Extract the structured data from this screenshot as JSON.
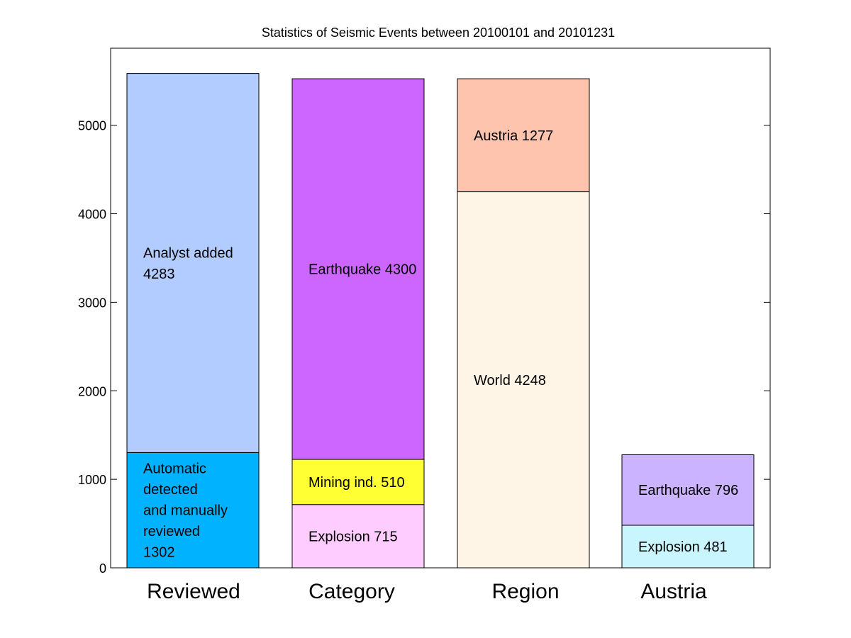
{
  "chart_data": {
    "type": "bar",
    "stacked": true,
    "title": "Statistics of Seismic Events between 20100101 and 20101231",
    "xlabel": "",
    "ylabel": "",
    "ylim": [
      0,
      5870
    ],
    "yticks": [
      0,
      1000,
      2000,
      3000,
      4000,
      5000
    ],
    "grid": false,
    "legend": "none",
    "categories": [
      "Reviewed",
      "Category",
      "Region",
      "Austria"
    ],
    "bars": [
      {
        "category": "Reviewed",
        "segments": [
          {
            "label_lines": [
              "Automatic",
              "detected",
              "and manually",
              "reviewed",
              "1302"
            ],
            "value": 1302,
            "color": "#00b2ff"
          },
          {
            "label_lines": [
              "Analyst added",
              "4283"
            ],
            "value": 4283,
            "color": "#b2ccff"
          }
        ]
      },
      {
        "category": "Category",
        "segments": [
          {
            "label_lines": [
              "Explosion 715"
            ],
            "value": 715,
            "color": "#ffccff"
          },
          {
            "label_lines": [
              "Mining ind. 510"
            ],
            "value": 510,
            "color": "#ffff33"
          },
          {
            "label_lines": [
              "Earthquake 4300"
            ],
            "value": 4300,
            "color": "#cc66ff"
          }
        ]
      },
      {
        "category": "Region",
        "segments": [
          {
            "label_lines": [
              "World 4248"
            ],
            "value": 4248,
            "color": "#fff5e6"
          },
          {
            "label_lines": [
              "Austria 1277"
            ],
            "value": 1277,
            "color": "#ffc4ad"
          }
        ]
      },
      {
        "category": "Austria",
        "segments": [
          {
            "label_lines": [
              "Explosion 481"
            ],
            "value": 481,
            "color": "#c9f5ff"
          },
          {
            "label_lines": [
              "Earthquake 796"
            ],
            "value": 796,
            "color": "#ccb3ff"
          }
        ]
      }
    ]
  }
}
